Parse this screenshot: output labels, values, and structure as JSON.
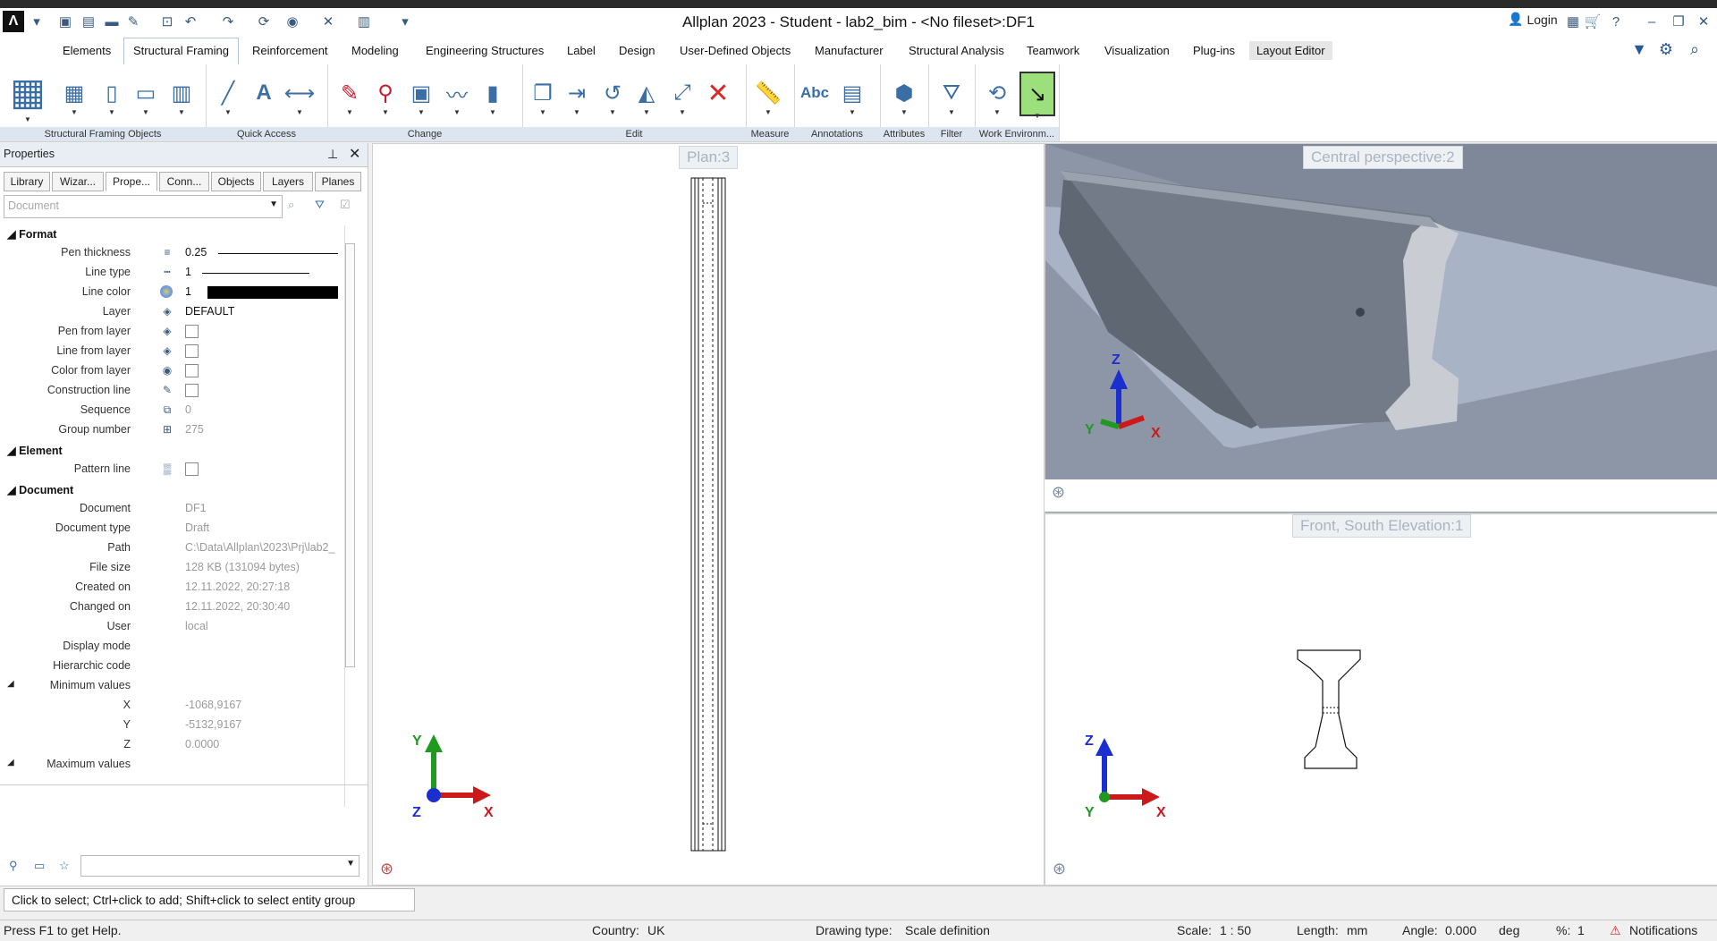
{
  "window": {
    "title": "Allplan 2023 - Student - lab2_bim - <No fileset>:DF1",
    "login_label": "Login"
  },
  "tabs": [
    {
      "label": "Elements"
    },
    {
      "label": "Structural Framing"
    },
    {
      "label": "Reinforcement"
    },
    {
      "label": "Modeling"
    },
    {
      "label": "Engineering Structures"
    },
    {
      "label": "Label"
    },
    {
      "label": "Design"
    },
    {
      "label": "User-Defined Objects"
    },
    {
      "label": "Manufacturer"
    },
    {
      "label": "Structural Analysis"
    },
    {
      "label": "Teamwork"
    },
    {
      "label": "Visualization"
    },
    {
      "label": "Plug-ins"
    },
    {
      "label": "Layout Editor"
    }
  ],
  "ribbon_groups": [
    {
      "label": "Structural Framing Objects"
    },
    {
      "label": "Quick Access"
    },
    {
      "label": "Change"
    },
    {
      "label": "Edit"
    },
    {
      "label": "Measure"
    },
    {
      "label": "Annotations"
    },
    {
      "label": "Attributes"
    },
    {
      "label": "Filter"
    },
    {
      "label": "Work Environm..."
    }
  ],
  "ribbon_text": {
    "abc": "Abc",
    "a": "A"
  },
  "properties": {
    "title": "Properties",
    "tabs": [
      {
        "label": "Library"
      },
      {
        "label": "Wizar..."
      },
      {
        "label": "Prope..."
      },
      {
        "label": "Conn..."
      },
      {
        "label": "Objects"
      },
      {
        "label": "Layers"
      },
      {
        "label": "Planes"
      }
    ],
    "filter_placeholder": "Document",
    "sections": {
      "format": "Format",
      "element": "Element",
      "document": "Document"
    },
    "format_rows": {
      "pen_thickness": {
        "label": "Pen thickness",
        "value": "0.25"
      },
      "line_type": {
        "label": "Line type",
        "value": "1"
      },
      "line_color": {
        "label": "Line color",
        "value": "1"
      },
      "layer": {
        "label": "Layer",
        "value": "DEFAULT"
      },
      "pen_from_layer": {
        "label": "Pen from layer"
      },
      "line_from_layer": {
        "label": "Line from layer"
      },
      "color_from_layer": {
        "label": "Color from layer"
      },
      "construction_line": {
        "label": "Construction line"
      },
      "sequence": {
        "label": "Sequence",
        "value": "0"
      },
      "group_number": {
        "label": "Group number",
        "value": "275"
      }
    },
    "element_rows": {
      "pattern_line": {
        "label": "Pattern line"
      }
    },
    "document_rows": {
      "document": {
        "label": "Document",
        "value": "DF1"
      },
      "document_type": {
        "label": "Document type",
        "value": "Draft"
      },
      "path": {
        "label": "Path",
        "value": "C:\\Data\\Allplan\\2023\\Prj\\lab2_"
      },
      "file_size": {
        "label": "File size",
        "value": "128 KB (131094 bytes)"
      },
      "created_on": {
        "label": "Created on",
        "value": "12.11.2022, 20:27:18"
      },
      "changed_on": {
        "label": "Changed on",
        "value": "12.11.2022, 20:30:40"
      },
      "user": {
        "label": "User",
        "value": "local"
      },
      "display_mode": {
        "label": "Display mode"
      },
      "hierarchic_code": {
        "label": "Hierarchic code"
      },
      "minimum_values": {
        "label": "Minimum values"
      },
      "min_x": {
        "label": "X",
        "value": "-1068,9167"
      },
      "min_y": {
        "label": "Y",
        "value": "-5132,9167"
      },
      "min_z": {
        "label": "Z",
        "value": "0.0000"
      },
      "maximum_values": {
        "label": "Maximum values"
      }
    }
  },
  "viewports": {
    "plan": {
      "label": "Plan:3"
    },
    "perspective": {
      "label": "Central perspective:2"
    },
    "elevation": {
      "label": "Front, South Elevation:1"
    },
    "axes": {
      "x": "X",
      "y": "Y",
      "z": "Z"
    }
  },
  "hint": "Click to select; Ctrl+click to add; Shift+click to select entity group",
  "status": {
    "help": "Press F1 to get Help.",
    "country_label": "Country:",
    "country": "UK",
    "drawing_type_label": "Drawing type:",
    "drawing_type": "Scale definition",
    "scale_label": "Scale:",
    "scale": "1 : 50",
    "length_label": "Length:",
    "length": "mm",
    "angle_label": "Angle:",
    "angle": "0.000",
    "angle_unit": "deg",
    "percent_label": "%:",
    "percent": "1",
    "notifications": "Notifications"
  },
  "colors": {
    "accent": "#3b6ea5",
    "axis_x": "#cc1a1a",
    "axis_y": "#1f9a1f",
    "axis_z": "#1b2fd0",
    "beam": "#6f7782",
    "shadow": "#7d8797"
  }
}
